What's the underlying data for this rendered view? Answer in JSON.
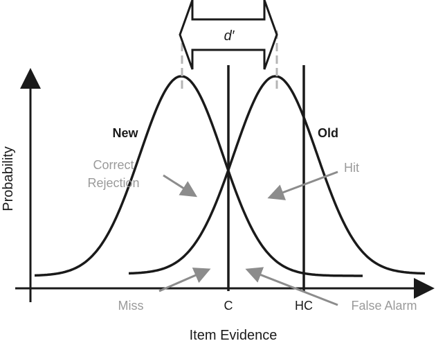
{
  "labels": {
    "d_prime": "d′",
    "new": "New",
    "old": "Old",
    "correct_rejection_line1": "Correct",
    "correct_rejection_line2": "Rejection",
    "hit": "Hit",
    "miss": "Miss",
    "false_alarm": "False Alarm",
    "criterion": "C",
    "high_criterion": "HC",
    "y_axis": "Probability",
    "x_axis": "Item Evidence"
  },
  "colors": {
    "curve": "#1a1a1a",
    "annotation": "#9a9a9a",
    "dashed": "#b5b5b5"
  }
}
